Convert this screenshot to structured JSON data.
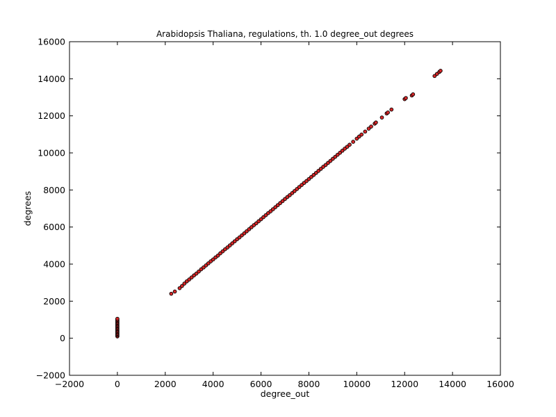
{
  "chart_data": {
    "type": "scatter",
    "title": "Arabidopsis Thaliana, regulations, th. 1.0 degree_out degrees",
    "xlabel": "degree_out",
    "ylabel": "degrees",
    "xlim": [
      -2000,
      16000
    ],
    "ylim": [
      -2000,
      16000
    ],
    "x_ticks": [
      "−2000",
      "0",
      "2000",
      "4000",
      "6000",
      "8000",
      "10000",
      "12000",
      "14000",
      "16000"
    ],
    "y_ticks": [
      "−2000",
      "0",
      "2000",
      "4000",
      "6000",
      "8000",
      "10000",
      "12000",
      "14000",
      "16000"
    ],
    "grid": false,
    "legend": "none",
    "marker_fill": "#d62728",
    "marker_edge": "#000000",
    "cluster_at_zero": {
      "x": 0,
      "y": [
        100,
        150,
        200,
        250,
        300,
        350,
        400,
        450,
        500,
        550,
        600,
        650,
        700,
        750,
        800,
        850,
        900,
        950,
        1000,
        1050
      ]
    },
    "series": [
      {
        "x": [
          2250,
          2400,
          2600,
          2700,
          2800,
          2900,
          3000,
          3100,
          3200,
          3300,
          3400,
          3500,
          3600,
          3700,
          3800,
          3900,
          4000,
          4100,
          4200,
          4300,
          4400,
          4500,
          4600,
          4700,
          4800,
          4900,
          5000,
          5100,
          5200,
          5300,
          5400,
          5500,
          5600,
          5700,
          5800,
          5900,
          6000,
          6100,
          6200,
          6300,
          6400,
          6500,
          6600,
          6700,
          6800,
          6900,
          7000,
          7100,
          7200,
          7300,
          7400,
          7500,
          7600,
          7700,
          7800,
          7900,
          8000,
          8100,
          8200,
          8300,
          8400,
          8500,
          8600,
          8700,
          8800,
          8900,
          9000,
          9100,
          9200,
          9300,
          9400,
          9500,
          9600,
          9700,
          9850,
          10000,
          10100,
          10200,
          10350,
          10500,
          10600,
          10750,
          10800,
          11050,
          11250,
          11300,
          11450,
          12000,
          12050,
          12300,
          12350,
          13250,
          13350,
          13450,
          13500
        ],
        "y": [
          2400,
          2520,
          2700,
          2820,
          2950,
          3070,
          3170,
          3280,
          3390,
          3490,
          3600,
          3720,
          3820,
          3930,
          4040,
          4150,
          4250,
          4360,
          4460,
          4580,
          4690,
          4800,
          4900,
          5010,
          5120,
          5230,
          5340,
          5440,
          5550,
          5660,
          5770,
          5880,
          5990,
          6100,
          6200,
          6310,
          6420,
          6530,
          6640,
          6750,
          6850,
          6960,
          7070,
          7180,
          7290,
          7400,
          7510,
          7620,
          7720,
          7830,
          7940,
          8050,
          8160,
          8270,
          8380,
          8480,
          8590,
          8700,
          8810,
          8920,
          9030,
          9140,
          9250,
          9350,
          9460,
          9570,
          9680,
          9790,
          9900,
          10010,
          10120,
          10230,
          10330,
          10440,
          10600,
          10770,
          10880,
          10990,
          11150,
          11310,
          11420,
          11580,
          11640,
          11910,
          12130,
          12180,
          12340,
          12900,
          12960,
          13100,
          13160,
          14150,
          14260,
          14370,
          14430
        ]
      }
    ]
  }
}
